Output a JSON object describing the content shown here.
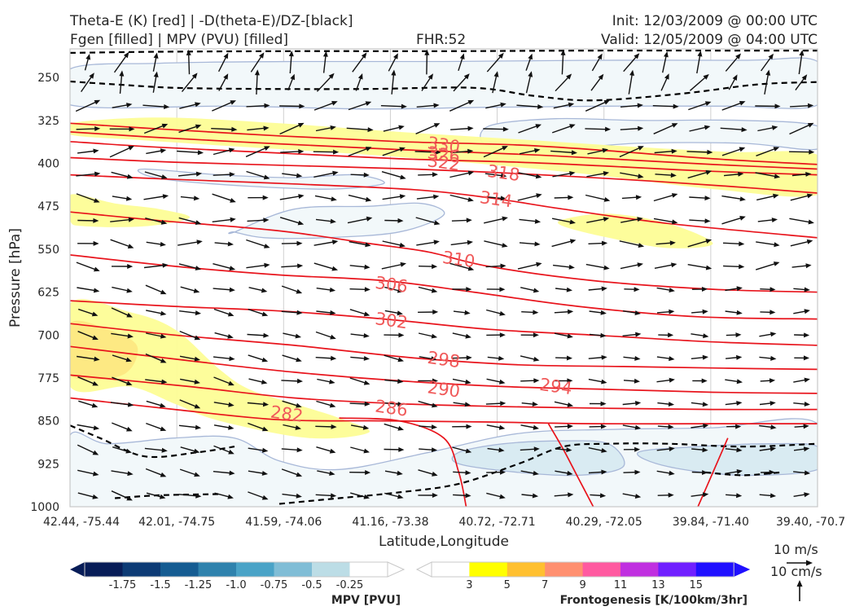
{
  "header": {
    "line1_left": "Theta-E (K) [red] | -D(theta-E)/DZ-[black]",
    "line2_left": "Fgen [filled] | MPV (PVU) [filled]",
    "fhr": "FHR:52",
    "init": "Init: 12/03/2009 @ 00:00 UTC",
    "valid": "Valid: 12/05/2009 @ 04:00 UTC"
  },
  "chart_data": {
    "type": "contour",
    "xlabel": "Latitude,Longitude",
    "ylabel": "Pressure [hPa]",
    "x_ticks": [
      "42.44, -75.44",
      "42.01, -74.75",
      "41.59, -74.06",
      "41.16, -73.38",
      "40.72, -72.71",
      "40.29, -72.05",
      "39.84, -71.40",
      "39.40, -70.7"
    ],
    "y_ticks": [
      "250",
      "325",
      "400",
      "475",
      "550",
      "625",
      "700",
      "775",
      "850",
      "925",
      "1000"
    ],
    "y_values": [
      250,
      325,
      400,
      475,
      550,
      625,
      700,
      775,
      850,
      925,
      1000
    ],
    "ylim": [
      1000,
      200
    ],
    "log_scale": false,
    "grid": true,
    "theta_e_contours": [
      {
        "value": 330,
        "label": "330",
        "x": [
          0,
          0.12,
          0.28,
          0.44,
          0.6,
          0.72,
          0.86,
          1.0
        ],
        "p": [
          330,
          340,
          352,
          362,
          368,
          378,
          392,
          402
        ]
      },
      {
        "value": 326,
        "label": "326",
        "x": [
          0,
          0.12,
          0.28,
          0.44,
          0.6,
          0.72,
          0.86,
          1.0
        ],
        "p": [
          345,
          355,
          366,
          376,
          384,
          392,
          402,
          410
        ]
      },
      {
        "value": 322,
        "label": "322",
        "x": [
          0,
          0.12,
          0.28,
          0.44,
          0.6,
          0.72,
          0.86,
          1.0
        ],
        "p": [
          362,
          372,
          382,
          392,
          398,
          405,
          414,
          420
        ]
      },
      {
        "value": 318,
        "label": "318",
        "x": [
          0,
          0.14,
          0.3,
          0.46,
          0.6,
          0.74,
          0.88,
          1.0
        ],
        "p": [
          390,
          398,
          404,
          410,
          418,
          428,
          440,
          452
        ]
      },
      {
        "value": 314,
        "label": "314",
        "x": [
          0,
          0.14,
          0.3,
          0.46,
          0.56,
          0.66,
          0.8,
          1.0
        ],
        "p": [
          420,
          428,
          436,
          446,
          460,
          480,
          505,
          530
        ]
      },
      {
        "value": 310,
        "label": "310",
        "x": [
          0,
          0.12,
          0.28,
          0.4,
          0.48,
          0.56,
          0.7,
          0.86,
          1.0
        ],
        "p": [
          485,
          500,
          518,
          540,
          555,
          580,
          605,
          620,
          625
        ]
      },
      {
        "value": 306,
        "label": "306",
        "x": [
          0,
          0.14,
          0.28,
          0.42,
          0.54,
          0.68,
          0.84,
          1.0
        ],
        "p": [
          560,
          580,
          595,
          605,
          625,
          650,
          668,
          672
        ]
      },
      {
        "value": 302,
        "label": "302",
        "x": [
          0,
          0.14,
          0.28,
          0.42,
          0.56,
          0.7,
          0.86,
          1.0
        ],
        "p": [
          640,
          650,
          658,
          672,
          690,
          700,
          712,
          718
        ]
      },
      {
        "value": 298,
        "label": "298",
        "x": [
          0,
          0.14,
          0.3,
          0.46,
          0.6,
          0.74,
          0.88,
          1.0
        ],
        "p": [
          680,
          700,
          718,
          740,
          752,
          755,
          758,
          760
        ]
      },
      {
        "value": 294,
        "label": "294",
        "x": [
          0,
          0.16,
          0.3,
          0.44,
          0.58,
          0.72,
          0.86,
          1.0
        ],
        "p": [
          720,
          745,
          765,
          780,
          790,
          795,
          800,
          802
        ]
      },
      {
        "value": 290,
        "label": "290",
        "x": [
          0,
          0.16,
          0.3,
          0.44,
          0.58,
          0.72,
          0.86,
          1.0
        ],
        "p": [
          770,
          790,
          810,
          820,
          825,
          828,
          830,
          830
        ]
      },
      {
        "value": 286,
        "label": "286",
        "x": [
          0,
          0.14,
          0.28,
          0.42,
          0.56,
          0.7,
          0.86,
          1.0
        ],
        "p": [
          810,
          830,
          848,
          850,
          852,
          855,
          855,
          855
        ]
      },
      {
        "value": 282,
        "label": "282",
        "x": [
          0.36,
          0.44,
          0.5,
          0.52,
          0.53
        ],
        "p": [
          845,
          850,
          880,
          940,
          1000
        ]
      },
      {
        "value": 282,
        "label": "",
        "x": [
          0.64,
          0.66,
          0.68,
          0.7
        ],
        "p": [
          855,
          900,
          950,
          1000
        ]
      },
      {
        "value": 282,
        "label": "",
        "x": [
          0.88,
          0.86,
          0.84
        ],
        "p": [
          880,
          940,
          1000
        ]
      }
    ],
    "contour_labels": [
      {
        "text": "330",
        "x": 0.5,
        "p": 368
      },
      {
        "text": "326",
        "x": 0.5,
        "p": 385
      },
      {
        "text": "322",
        "x": 0.5,
        "p": 399
      },
      {
        "text": "318",
        "x": 0.58,
        "p": 417
      },
      {
        "text": "314",
        "x": 0.57,
        "p": 463
      },
      {
        "text": "310",
        "x": 0.52,
        "p": 568
      },
      {
        "text": "306",
        "x": 0.43,
        "p": 612
      },
      {
        "text": "302",
        "x": 0.43,
        "p": 675
      },
      {
        "text": "298",
        "x": 0.5,
        "p": 743
      },
      {
        "text": "294",
        "x": 0.65,
        "p": 790
      },
      {
        "text": "290",
        "x": 0.5,
        "p": 795
      },
      {
        "text": "286",
        "x": 0.43,
        "p": 828
      },
      {
        "text": "282",
        "x": 0.29,
        "p": 838
      }
    ],
    "dtheta_dz_contours": [
      {
        "x": [
          0,
          0.12,
          0.3,
          0.5,
          0.7,
          0.9,
          1.0
        ],
        "p": [
          207,
          205,
          204,
          204,
          203,
          203,
          203
        ]
      },
      {
        "x": [
          0,
          0.06,
          0.14,
          0.26,
          0.4,
          0.54,
          0.62,
          0.7,
          0.82,
          0.92,
          1.0
        ],
        "p": [
          257,
          262,
          268,
          270,
          270,
          268,
          282,
          290,
          278,
          262,
          258
        ]
      },
      {
        "x": [
          0,
          0.04,
          0.1,
          0.17,
          0.22
        ],
        "p": [
          858,
          880,
          912,
          905,
          895
        ]
      },
      {
        "x": [
          0.06,
          0.12,
          0.2
        ],
        "p": [
          985,
          980,
          978
        ]
      },
      {
        "x": [
          0.28,
          0.36,
          0.44,
          0.52,
          0.6,
          0.66,
          0.72,
          0.8,
          0.9,
          1.0
        ],
        "p": [
          995,
          985,
          975,
          960,
          925,
          895,
          890,
          890,
          895,
          890
        ]
      },
      {
        "x": [
          0.85,
          0.9,
          0.95
        ],
        "p": [
          940,
          945,
          940
        ]
      }
    ],
    "fgen_levels": [
      3,
      5,
      7,
      9,
      11,
      13,
      15
    ],
    "fgen_colors": [
      "#ffff00",
      "#ffc030",
      "#ff9070",
      "#ff5aa0",
      "#c030e0",
      "#7020ff",
      "#2010ff"
    ],
    "mpv_levels": [
      -1.75,
      -1.5,
      -1.25,
      -1.0,
      -0.75,
      -0.5,
      -0.25
    ],
    "mpv_colors": [
      "#081d58",
      "#0d3b75",
      "#155c92",
      "#2f82ad",
      "#4aa3c7",
      "#80bdd6",
      "#bcdde6",
      "#ffffff"
    ],
    "fgen_regions": [
      {
        "level": 3,
        "x": [
          0,
          0.12,
          0.28,
          0.44,
          0.6,
          0.74,
          0.88,
          1.0,
          1.0,
          0.86,
          0.7,
          0.56,
          0.4,
          0.24,
          0.1,
          0
        ],
        "p": [
          330,
          320,
          330,
          345,
          358,
          370,
          380,
          385,
          455,
          445,
          420,
          402,
          385,
          372,
          360,
          350
        ]
      },
      {
        "level": 3,
        "x": [
          0,
          0.06,
          0.12,
          0.16,
          0.1,
          0.02,
          0
        ],
        "p": [
          455,
          470,
          480,
          495,
          510,
          510,
          500
        ]
      },
      {
        "level": 3,
        "x": [
          0.66,
          0.72,
          0.8,
          0.86,
          0.8,
          0.72,
          0.66
        ],
        "p": [
          498,
          488,
          505,
          540,
          548,
          530,
          510
        ]
      },
      {
        "level": 3,
        "x": [
          0,
          0.08,
          0.14,
          0.2,
          0.24,
          0.3,
          0.36,
          0.4,
          0.32,
          0.2,
          0.14,
          0.08,
          0
        ],
        "p": [
          645,
          660,
          690,
          760,
          795,
          820,
          845,
          870,
          880,
          850,
          820,
          790,
          790
        ]
      },
      {
        "level": 5,
        "x": [
          0,
          0.05,
          0.09,
          0.07,
          0
        ],
        "p": [
          680,
          690,
          720,
          770,
          770
        ]
      }
    ],
    "mpv_regions": [
      {
        "level": -0.25,
        "x": [
          0,
          0.12,
          0.3,
          0.5,
          0.7,
          0.9,
          1.0,
          1.0,
          0.88,
          0.72,
          0.56,
          0.4,
          0.22,
          0
        ],
        "p": [
          235,
          225,
          222,
          222,
          220,
          220,
          222,
          298,
          300,
          300,
          302,
          305,
          300,
          298
        ]
      },
      {
        "level": -0.25,
        "x": [
          0.1,
          0.2,
          0.3,
          0.38,
          0.42,
          0.35,
          0.24,
          0.14,
          0.1
        ],
        "p": [
          410,
          420,
          425,
          420,
          435,
          445,
          440,
          430,
          420
        ]
      },
      {
        "level": -0.25,
        "x": [
          0.22,
          0.3,
          0.4,
          0.47,
          0.5,
          0.44,
          0.34,
          0.26,
          0.22
        ],
        "p": [
          520,
          480,
          475,
          470,
          490,
          520,
          530,
          530,
          520
        ]
      },
      {
        "level": -0.25,
        "x": [
          0.56,
          0.65,
          0.76,
          0.9,
          1.0,
          1.0,
          0.9,
          0.76,
          0.65,
          0.56
        ],
        "p": [
          335,
          322,
          325,
          325,
          335,
          375,
          365,
          365,
          375,
          370
        ]
      },
      {
        "level": -0.25,
        "x": [
          0,
          0.05,
          0.14,
          0.22,
          0.28,
          0.36,
          0.48,
          0.6,
          0.72,
          0.86,
          1.0,
          1.0,
          0
        ],
        "p": [
          875,
          890,
          880,
          880,
          920,
          935,
          905,
          872,
          865,
          862,
          855,
          1000,
          1000
        ]
      },
      {
        "level": -0.5,
        "x": [
          0.52,
          0.58,
          0.66,
          0.72,
          0.74,
          0.68,
          0.6,
          0.52
        ],
        "p": [
          905,
          890,
          885,
          890,
          930,
          945,
          940,
          925
        ]
      },
      {
        "level": -0.5,
        "x": [
          0.76,
          0.84,
          0.94,
          1.0,
          1.0,
          0.9,
          0.8
        ],
        "p": [
          905,
          895,
          890,
          895,
          935,
          945,
          930
        ]
      }
    ],
    "wind_vectors": {
      "columns": 22,
      "levels": [
        225,
        260,
        300,
        340,
        380,
        420,
        460,
        500,
        540,
        580,
        620,
        660,
        700,
        740,
        780,
        820,
        860,
        900,
        940,
        980
      ]
    },
    "colorbar_mpv": {
      "title": "MPV [PVU]",
      "ticks": [
        "-1.75",
        "-1.5",
        "-1.25",
        "-1.0",
        "-0.75",
        "-0.5",
        "-0.25"
      ]
    },
    "colorbar_fgen": {
      "title": "Frontogenesis [K/100km/3hr]",
      "ticks": [
        "3",
        "5",
        "7",
        "9",
        "11",
        "13",
        "15"
      ]
    },
    "quiver_key": {
      "horizontal": "10 m/s",
      "vertical": "10 cm/s"
    }
  }
}
